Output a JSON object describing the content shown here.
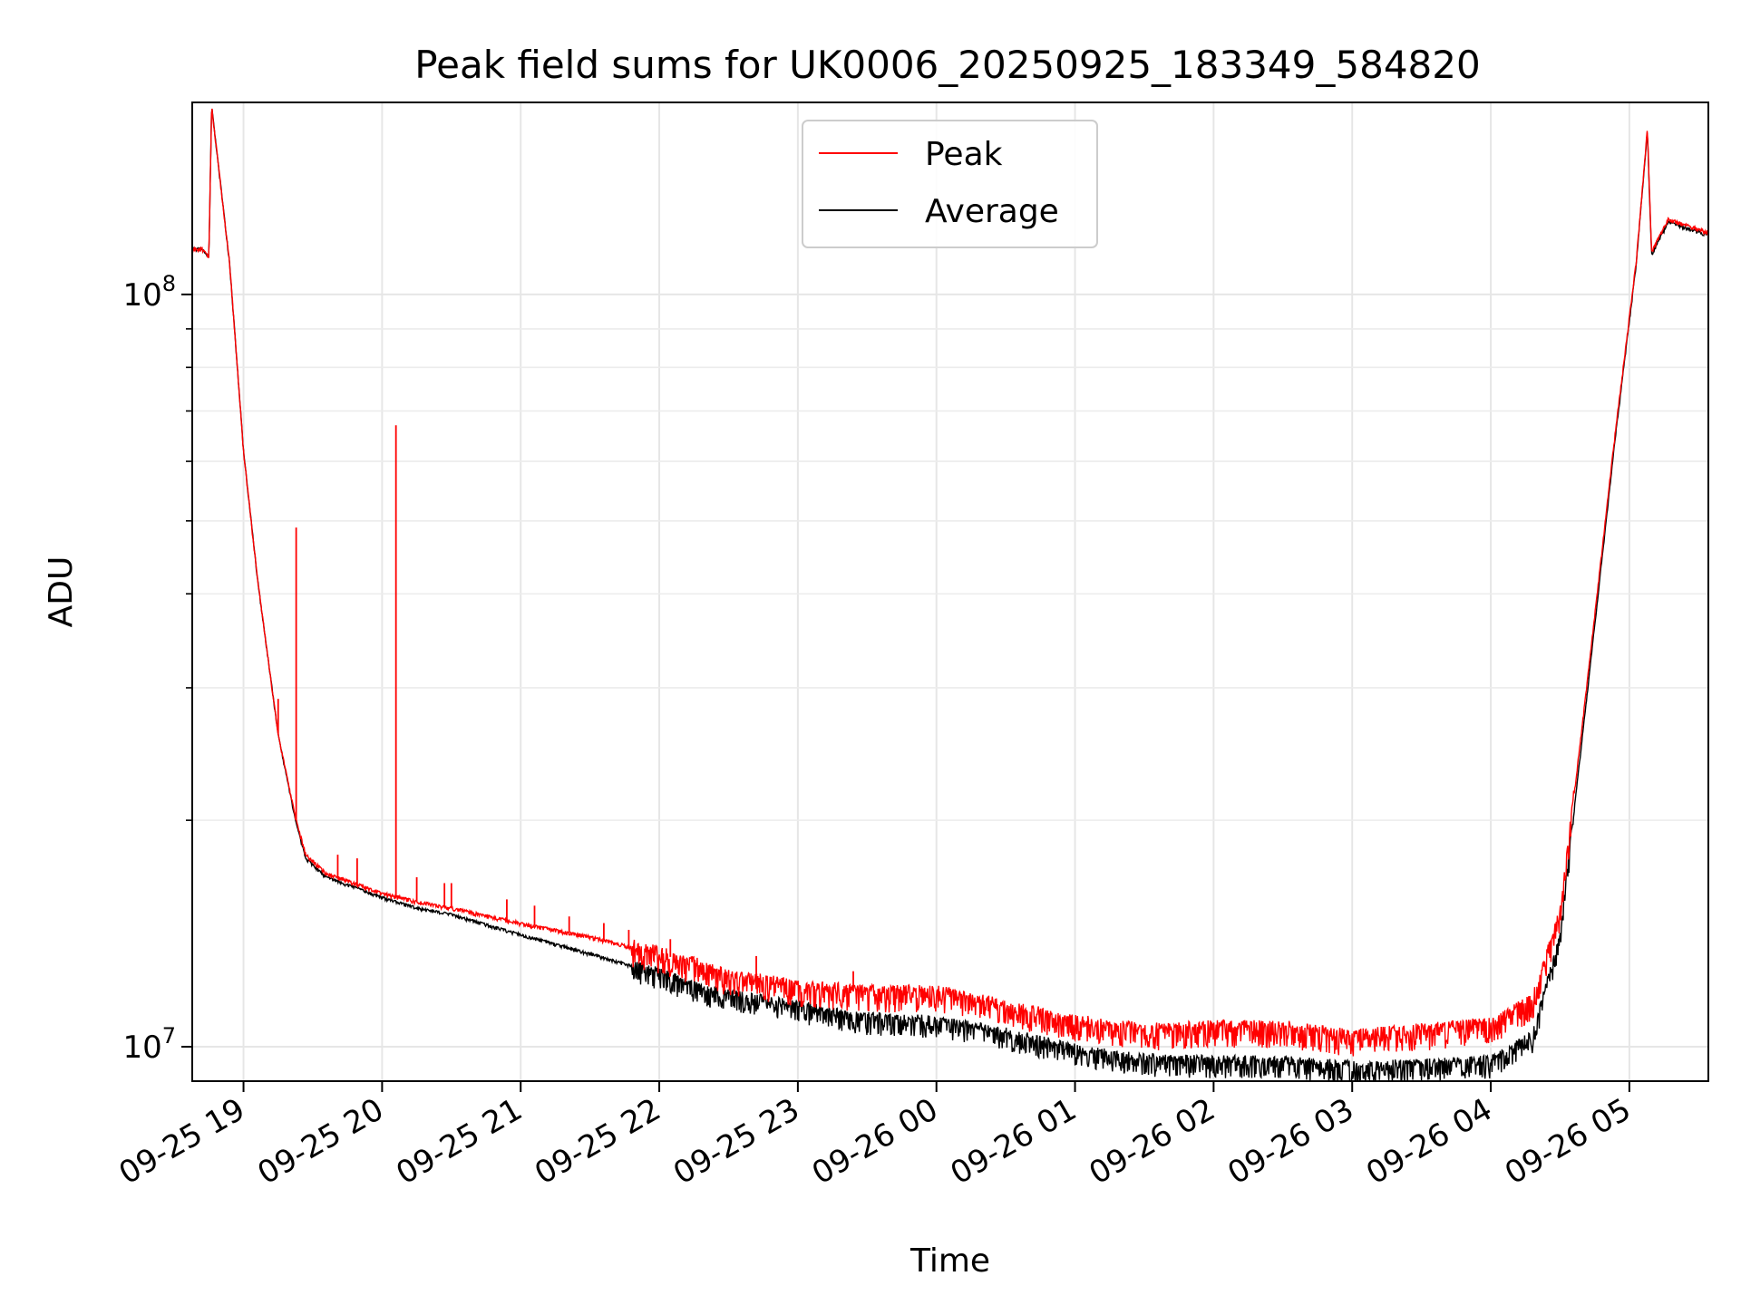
{
  "chart_data": {
    "type": "line",
    "title": "Peak field sums for UK0006_20250925_183349_584820",
    "xlabel": "Time",
    "ylabel": "ADU",
    "yscale": "log",
    "ylim": [
      9000000,
      180000000
    ],
    "xlim_hours": [
      18.63,
      29.57
    ],
    "x_ticks": [
      {
        "label": "09-25 19",
        "hour": 19
      },
      {
        "label": "09-25 20",
        "hour": 20
      },
      {
        "label": "09-25 21",
        "hour": 21
      },
      {
        "label": "09-25 22",
        "hour": 22
      },
      {
        "label": "09-25 23",
        "hour": 23
      },
      {
        "label": "09-26 00",
        "hour": 24
      },
      {
        "label": "09-26 01",
        "hour": 25
      },
      {
        "label": "09-26 02",
        "hour": 26
      },
      {
        "label": "09-26 03",
        "hour": 27
      },
      {
        "label": "09-26 04",
        "hour": 28
      },
      {
        "label": "09-26 05",
        "hour": 29
      }
    ],
    "y_ticks": [
      {
        "base": "10",
        "exp": "7",
        "value": 10000000
      },
      {
        "base": "10",
        "exp": "8",
        "value": 100000000
      }
    ],
    "legend": {
      "position": "top-center",
      "entries": [
        "Peak",
        "Average"
      ]
    },
    "grid": true,
    "series": [
      {
        "name": "Average",
        "color": "#000000",
        "noise": 0.05,
        "points": [
          [
            18.63,
            115000000
          ],
          [
            18.7,
            115000000
          ],
          [
            18.75,
            112000000
          ],
          [
            18.77,
            178000000
          ],
          [
            18.9,
            110000000
          ],
          [
            19.0,
            62000000
          ],
          [
            19.1,
            42000000
          ],
          [
            19.25,
            26000000
          ],
          [
            19.38,
            19800000
          ],
          [
            19.45,
            17800000
          ],
          [
            19.6,
            16800000
          ],
          [
            19.8,
            16300000
          ],
          [
            20.0,
            15800000
          ],
          [
            20.25,
            15300000
          ],
          [
            20.5,
            15000000
          ],
          [
            21.0,
            14100000
          ],
          [
            21.5,
            13300000
          ],
          [
            22.0,
            12500000
          ],
          [
            22.3,
            11900000
          ],
          [
            22.5,
            11700000
          ],
          [
            23.0,
            11300000
          ],
          [
            23.5,
            10900000
          ],
          [
            24.0,
            10800000
          ],
          [
            24.5,
            10400000
          ],
          [
            25.0,
            9900000
          ],
          [
            25.5,
            9600000
          ],
          [
            26.0,
            9550000
          ],
          [
            26.5,
            9550000
          ],
          [
            27.0,
            9400000
          ],
          [
            27.5,
            9450000
          ],
          [
            28.0,
            9550000
          ],
          [
            28.3,
            10300000
          ],
          [
            28.5,
            14000000
          ],
          [
            28.7,
            30000000
          ],
          [
            28.9,
            65000000
          ],
          [
            29.05,
            110000000
          ],
          [
            29.13,
            165000000
          ],
          [
            29.16,
            113000000
          ],
          [
            29.28,
            125000000
          ],
          [
            29.45,
            122000000
          ],
          [
            29.57,
            120000000
          ]
        ]
      },
      {
        "name": "Peak",
        "color": "#ff0000",
        "noise": 0.06,
        "points": [
          [
            18.63,
            115000000
          ],
          [
            18.7,
            115000000
          ],
          [
            18.75,
            112000000
          ],
          [
            18.77,
            178000000
          ],
          [
            18.9,
            110000000
          ],
          [
            19.0,
            62000000
          ],
          [
            19.1,
            42000000
          ],
          [
            19.25,
            26000000
          ],
          [
            19.38,
            20000000
          ],
          [
            19.45,
            18000000
          ],
          [
            19.6,
            17000000
          ],
          [
            19.8,
            16500000
          ],
          [
            20.0,
            16000000
          ],
          [
            20.25,
            15600000
          ],
          [
            20.5,
            15300000
          ],
          [
            21.0,
            14600000
          ],
          [
            21.5,
            14000000
          ],
          [
            22.0,
            13300000
          ],
          [
            22.3,
            12800000
          ],
          [
            22.5,
            12400000
          ],
          [
            23.0,
            12000000
          ],
          [
            23.5,
            11800000
          ],
          [
            24.0,
            11800000
          ],
          [
            24.5,
            11300000
          ],
          [
            25.0,
            10800000
          ],
          [
            25.5,
            10500000
          ],
          [
            26.0,
            10600000
          ],
          [
            26.5,
            10600000
          ],
          [
            27.0,
            10300000
          ],
          [
            27.5,
            10500000
          ],
          [
            28.0,
            10700000
          ],
          [
            28.3,
            11500000
          ],
          [
            28.5,
            15000000
          ],
          [
            28.7,
            31000000
          ],
          [
            28.9,
            66000000
          ],
          [
            29.05,
            111000000
          ],
          [
            29.13,
            166000000
          ],
          [
            29.16,
            114000000
          ],
          [
            29.28,
            126000000
          ],
          [
            29.45,
            123000000
          ],
          [
            29.57,
            121000000
          ]
        ],
        "spikes": [
          [
            19.25,
            29000000
          ],
          [
            19.38,
            49000000
          ],
          [
            19.68,
            18000000
          ],
          [
            19.82,
            17800000
          ],
          [
            20.1,
            67000000
          ],
          [
            20.25,
            16800000
          ],
          [
            20.45,
            16500000
          ],
          [
            20.5,
            16500000
          ],
          [
            20.9,
            15700000
          ],
          [
            21.1,
            15400000
          ],
          [
            21.35,
            14900000
          ],
          [
            21.6,
            14600000
          ],
          [
            21.78,
            14300000
          ],
          [
            22.08,
            13900000
          ],
          [
            22.7,
            13200000
          ],
          [
            23.4,
            12600000
          ]
        ]
      }
    ]
  }
}
